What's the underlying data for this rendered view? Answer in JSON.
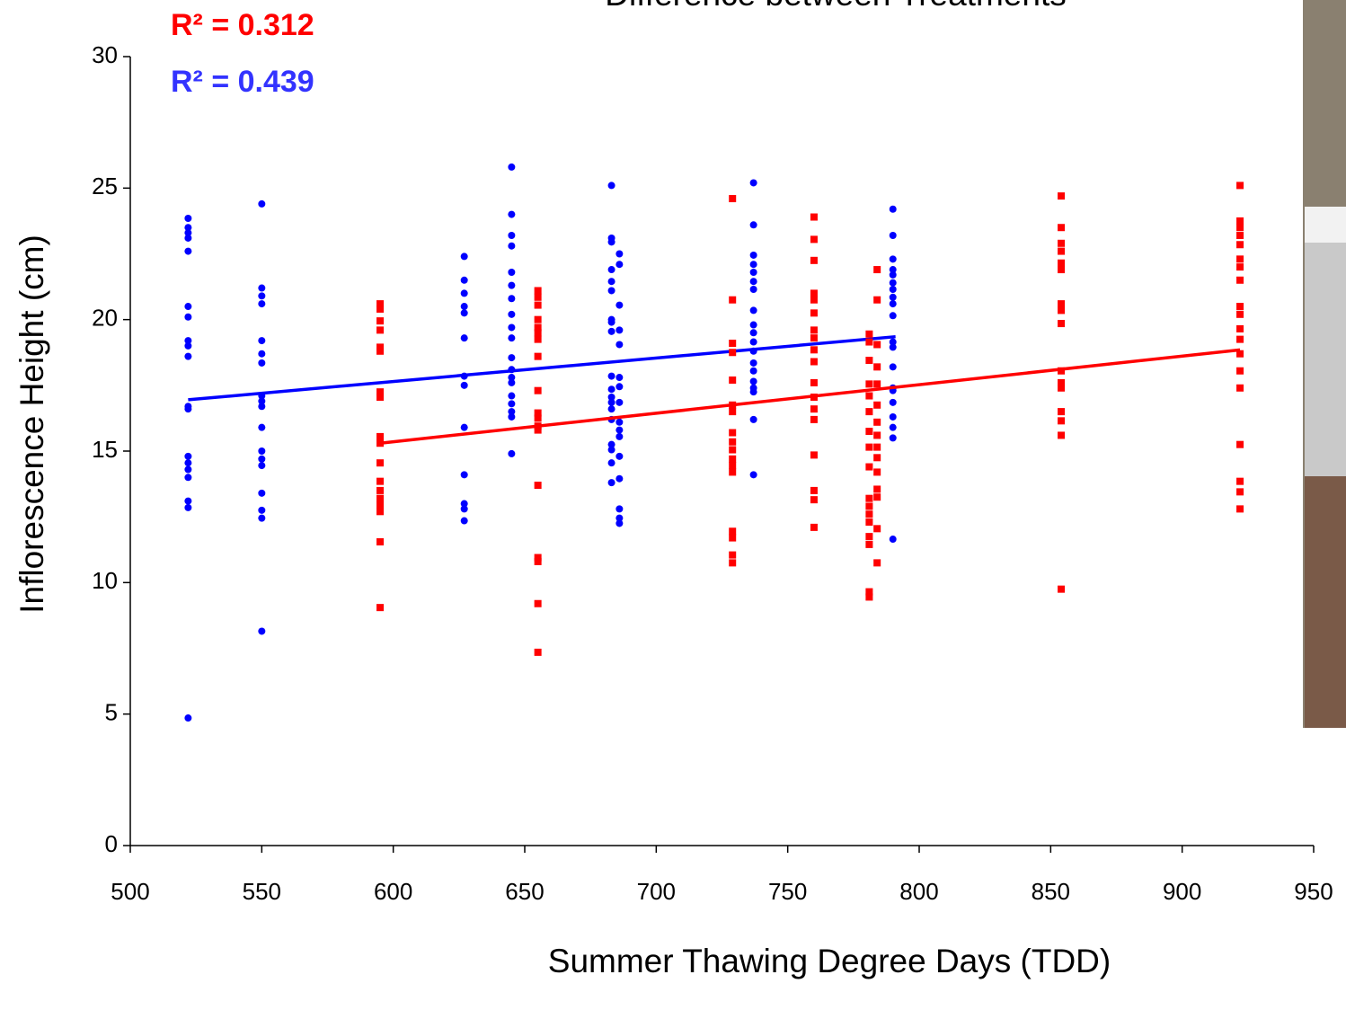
{
  "chart_data": {
    "type": "scatter",
    "title": "Difference between Treatments",
    "x_label": "Summer Thawing Degree Days (TDD)",
    "y_label": "Inflorescence Height (cm)",
    "xlim": [
      500,
      950
    ],
    "xticks": [
      500,
      550,
      600,
      650,
      700,
      750,
      800,
      850,
      900,
      950
    ],
    "ylim": [
      0,
      30
    ],
    "yticks": [
      0,
      5,
      10,
      15,
      20,
      25,
      30
    ],
    "annotations": [
      {
        "text": "R² = 0.312",
        "color": "#ff0000"
      },
      {
        "text": "R² = 0.439",
        "color": "#3333ff"
      }
    ],
    "series": [
      {
        "color": "#0000ff",
        "marker": "circle",
        "x": [
          522,
          522,
          522,
          522,
          522,
          522,
          522,
          522,
          522,
          522,
          522,
          522,
          522,
          522,
          522,
          522,
          522,
          522,
          522,
          550,
          550,
          550,
          550,
          550,
          550,
          550,
          550,
          550,
          550,
          550,
          550,
          550,
          550,
          550,
          550,
          550,
          550,
          627,
          627,
          627,
          627,
          627,
          627,
          627,
          627,
          627,
          627,
          627,
          627,
          627,
          645,
          645,
          645,
          645,
          645,
          645,
          645,
          645,
          645,
          645,
          645,
          645,
          645,
          645,
          645,
          645,
          645,
          645,
          645,
          683,
          683,
          683,
          683,
          683,
          683,
          683,
          683,
          683,
          683,
          683,
          683,
          683,
          683,
          683,
          683,
          683,
          683,
          683,
          686,
          686,
          686,
          686,
          686,
          686,
          686,
          686,
          686,
          686,
          686,
          686,
          686,
          686,
          686,
          686,
          737,
          737,
          737,
          737,
          737,
          737,
          737,
          737,
          737,
          737,
          737,
          737,
          737,
          737,
          737,
          737,
          737,
          737,
          737,
          790,
          790,
          790,
          790,
          790,
          790,
          790,
          790,
          790,
          790,
          790,
          790,
          790,
          790,
          790,
          790,
          790,
          790,
          790,
          790
        ],
        "values": [
          23.85,
          23.5,
          23.3,
          23.1,
          22.6,
          20.5,
          20.1,
          19.2,
          19.0,
          18.6,
          16.7,
          16.6,
          14.8,
          14.55,
          14.3,
          14.0,
          13.1,
          12.85,
          4.85,
          24.4,
          21.2,
          20.9,
          20.6,
          19.2,
          18.7,
          18.35,
          17.1,
          16.9,
          16.7,
          15.9,
          15.0,
          14.7,
          14.45,
          13.4,
          12.75,
          12.45,
          8.15,
          22.4,
          21.5,
          21.0,
          20.5,
          20.25,
          19.3,
          17.85,
          17.5,
          15.9,
          14.1,
          13.0,
          12.8,
          12.35,
          25.8,
          24.0,
          23.2,
          22.8,
          21.8,
          21.3,
          20.8,
          20.2,
          19.7,
          19.3,
          18.55,
          18.1,
          17.8,
          17.6,
          17.1,
          16.8,
          16.5,
          16.3,
          14.9,
          25.1,
          23.1,
          22.95,
          21.9,
          21.45,
          21.1,
          20.0,
          19.9,
          19.55,
          17.85,
          17.35,
          17.05,
          16.85,
          16.6,
          16.2,
          15.25,
          15.05,
          14.55,
          13.8,
          22.5,
          22.1,
          20.55,
          19.6,
          19.05,
          17.8,
          17.45,
          16.85,
          16.1,
          15.8,
          15.55,
          14.8,
          13.95,
          12.8,
          12.45,
          12.25,
          25.2,
          23.6,
          22.45,
          22.1,
          21.8,
          21.45,
          21.15,
          20.35,
          19.8,
          19.5,
          19.15,
          18.8,
          18.35,
          18.05,
          17.65,
          17.4,
          17.25,
          16.2,
          14.1,
          24.2,
          23.2,
          22.3,
          21.9,
          21.7,
          21.4,
          21.15,
          20.85,
          20.6,
          20.15,
          19.15,
          18.95,
          18.2,
          17.4,
          17.3,
          16.85,
          16.3,
          15.9,
          15.5,
          11.65
        ],
        "trendline": {
          "x": [
            522,
            791
          ],
          "values": [
            16.95,
            19.35
          ]
        }
      },
      {
        "color": "#ff0000",
        "marker": "square",
        "x": [
          595,
          595,
          595,
          595,
          595,
          595,
          595,
          595,
          595,
          595,
          595,
          595,
          595,
          595,
          595,
          595,
          595,
          595,
          655,
          655,
          655,
          655,
          655,
          655,
          655,
          655,
          655,
          655,
          655,
          655,
          655,
          655,
          655,
          655,
          655,
          655,
          729,
          729,
          729,
          729,
          729,
          729,
          729,
          729,
          729,
          729,
          729,
          729,
          729,
          729,
          729,
          729,
          729,
          760,
          760,
          760,
          760,
          760,
          760,
          760,
          760,
          760,
          760,
          760,
          760,
          760,
          760,
          760,
          760,
          760,
          760,
          781,
          781,
          781,
          781,
          781,
          781,
          781,
          781,
          781,
          781,
          781,
          781,
          781,
          781,
          781,
          781,
          781,
          784,
          784,
          784,
          784,
          784,
          784,
          784,
          784,
          784,
          784,
          784,
          784,
          784,
          784,
          784,
          854,
          854,
          854,
          854,
          854,
          854,
          854,
          854,
          854,
          854,
          854,
          854,
          854,
          854,
          854,
          854,
          922,
          922,
          922,
          922,
          922,
          922,
          922,
          922,
          922,
          922,
          922,
          922,
          922,
          922,
          922,
          922,
          922,
          922,
          922
        ],
        "values": [
          20.6,
          20.4,
          19.95,
          19.6,
          18.95,
          18.8,
          17.25,
          17.05,
          15.55,
          15.3,
          14.55,
          13.85,
          13.5,
          13.2,
          12.95,
          12.7,
          11.55,
          9.05,
          21.1,
          20.85,
          20.55,
          20.0,
          19.7,
          19.5,
          19.25,
          18.6,
          17.3,
          16.45,
          16.25,
          15.95,
          15.8,
          13.7,
          10.95,
          10.8,
          9.2,
          7.35,
          24.6,
          20.75,
          19.1,
          18.75,
          17.7,
          16.75,
          16.5,
          15.7,
          15.35,
          15.05,
          14.7,
          14.45,
          14.2,
          11.95,
          11.7,
          11.05,
          10.75,
          23.9,
          23.05,
          22.25,
          21.0,
          20.75,
          20.25,
          19.6,
          19.3,
          18.85,
          18.4,
          17.6,
          17.05,
          16.6,
          16.2,
          14.85,
          13.5,
          13.15,
          12.1,
          19.45,
          19.15,
          18.45,
          17.55,
          17.1,
          16.5,
          15.75,
          15.15,
          14.4,
          13.2,
          12.9,
          12.6,
          12.3,
          11.75,
          11.45,
          9.65,
          9.45,
          21.9,
          20.75,
          19.05,
          18.2,
          17.55,
          16.75,
          16.1,
          15.6,
          15.15,
          14.75,
          14.2,
          13.55,
          13.25,
          12.05,
          10.75,
          24.7,
          23.5,
          22.9,
          22.6,
          22.15,
          21.9,
          20.6,
          20.35,
          19.85,
          18.05,
          17.6,
          17.4,
          16.5,
          16.15,
          15.6,
          9.75,
          25.1,
          23.75,
          23.5,
          23.2,
          22.85,
          22.3,
          22.0,
          21.5,
          20.5,
          20.2,
          19.65,
          19.25,
          18.7,
          18.05,
          17.4,
          15.25,
          13.85,
          13.45,
          12.8
        ],
        "trendline": {
          "x": [
            595,
            922
          ],
          "values": [
            15.3,
            18.85
          ]
        }
      }
    ]
  }
}
